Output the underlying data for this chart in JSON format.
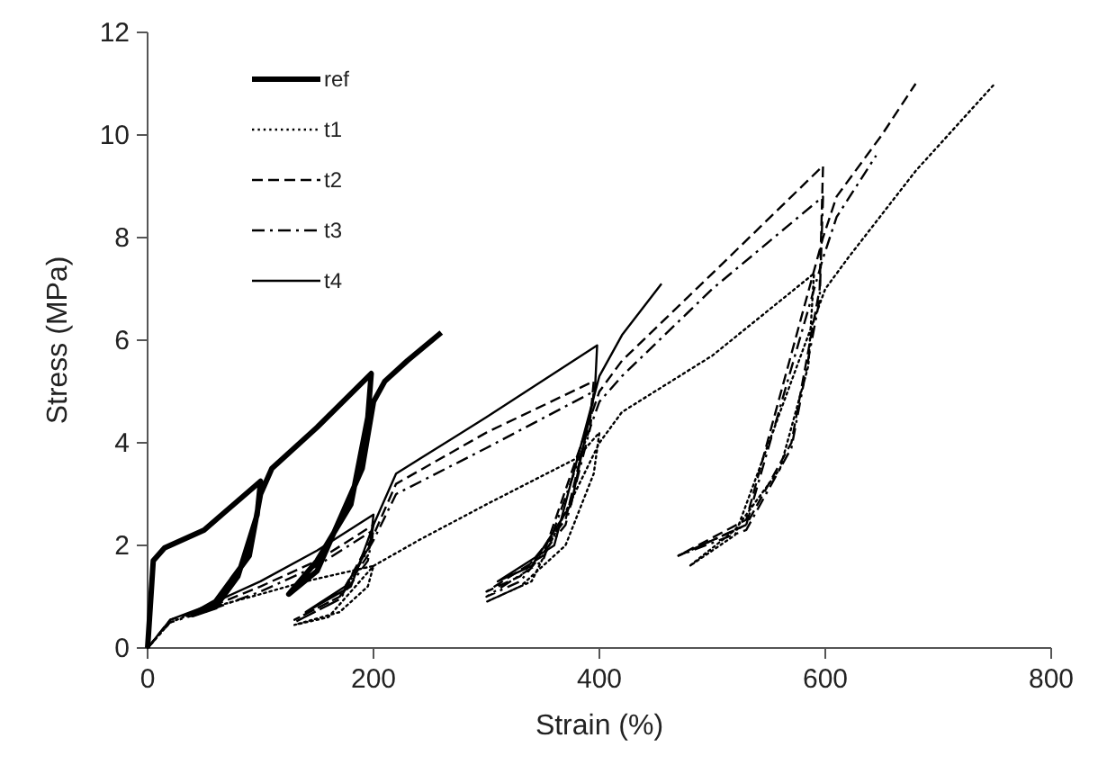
{
  "chart_data": {
    "type": "line",
    "xlabel": "Strain (%)",
    "ylabel": "Stress (MPa)",
    "xlim": [
      0,
      800
    ],
    "ylim": [
      0,
      12
    ],
    "xticks": [
      0,
      200,
      400,
      600,
      800
    ],
    "yticks": [
      0,
      2,
      4,
      6,
      8,
      10,
      12
    ],
    "grid": false,
    "legend": "top left",
    "marker": "none",
    "series": [
      {
        "name": "ref",
        "color": "#000000",
        "line_style": "solid",
        "x": [
          0,
          5,
          15,
          50,
          100,
          97,
          80,
          60,
          40,
          60,
          90,
          100,
          110,
          150,
          198,
          195,
          180,
          150,
          125,
          150,
          190,
          200,
          210,
          230,
          260
        ],
        "values": [
          0,
          1.7,
          1.95,
          2.3,
          3.25,
          2.6,
          1.4,
          0.8,
          0.65,
          0.9,
          1.8,
          3.0,
          3.5,
          4.3,
          5.35,
          4.5,
          2.8,
          1.7,
          1.05,
          1.5,
          3.5,
          4.8,
          5.2,
          5.6,
          6.15
        ]
      },
      {
        "name": "t1",
        "color": "#000000",
        "line_style": "dotted",
        "x": [
          0,
          20,
          50,
          100,
          140,
          200,
          195,
          170,
          130,
          160,
          200,
          240,
          300,
          380,
          400,
          395,
          370,
          330,
          300,
          340,
          400,
          420,
          500,
          590,
          585,
          560,
          520,
          480,
          520,
          600,
          620,
          680,
          750
        ],
        "values": [
          0,
          0.5,
          0.75,
          1.05,
          1.3,
          1.6,
          1.2,
          0.7,
          0.45,
          0.6,
          1.6,
          2.1,
          2.8,
          3.7,
          4.2,
          3.4,
          2.0,
          1.2,
          0.9,
          1.3,
          4.0,
          4.6,
          5.7,
          7.3,
          5.5,
          3.5,
          2.3,
          1.6,
          2.2,
          7.0,
          7.6,
          9.3,
          11.0
        ]
      },
      {
        "name": "t2",
        "color": "#000000",
        "line_style": "dashed",
        "x": [
          0,
          20,
          50,
          100,
          150,
          200,
          195,
          170,
          130,
          170,
          200,
          220,
          300,
          395,
          392,
          370,
          330,
          300,
          350,
          400,
          420,
          500,
          598,
          595,
          570,
          530,
          470,
          530,
          598,
          610,
          650,
          680
        ],
        "values": [
          0,
          0.55,
          0.75,
          1.2,
          1.7,
          2.4,
          1.8,
          1.0,
          0.55,
          1.0,
          2.2,
          3.2,
          4.2,
          5.2,
          4.5,
          2.5,
          1.4,
          1.1,
          1.8,
          5.0,
          5.6,
          7.3,
          9.4,
          7.0,
          4.0,
          2.4,
          1.8,
          2.5,
          8.0,
          8.8,
          10.0,
          11.0
        ]
      },
      {
        "name": "t3",
        "color": "#000000",
        "line_style": "dashdot",
        "x": [
          0,
          20,
          50,
          100,
          150,
          200,
          195,
          170,
          130,
          170,
          200,
          220,
          300,
          395,
          392,
          370,
          330,
          300,
          350,
          400,
          420,
          500,
          598,
          595,
          570,
          530,
          470,
          530,
          598,
          610,
          645
        ],
        "values": [
          0,
          0.5,
          0.7,
          1.1,
          1.6,
          2.3,
          1.7,
          0.95,
          0.5,
          0.95,
          2.1,
          3.0,
          3.9,
          5.0,
          4.3,
          2.4,
          1.3,
          1.0,
          1.7,
          4.8,
          5.3,
          7.0,
          8.8,
          6.8,
          3.9,
          2.3,
          1.8,
          2.4,
          7.6,
          8.4,
          9.6
        ]
      },
      {
        "name": "t4",
        "color": "#000000",
        "line_style": "solid",
        "x": [
          0,
          20,
          50,
          100,
          150,
          200,
          197,
          175,
          140,
          180,
          200,
          220,
          300,
          398,
          396,
          375,
          340,
          310,
          360,
          400,
          420,
          455
        ],
        "values": [
          0,
          0.55,
          0.8,
          1.3,
          1.9,
          2.6,
          2.0,
          1.2,
          0.7,
          1.2,
          2.4,
          3.4,
          4.5,
          5.9,
          5.0,
          2.8,
          1.6,
          1.3,
          2.0,
          5.3,
          6.1,
          7.1
        ]
      }
    ]
  }
}
